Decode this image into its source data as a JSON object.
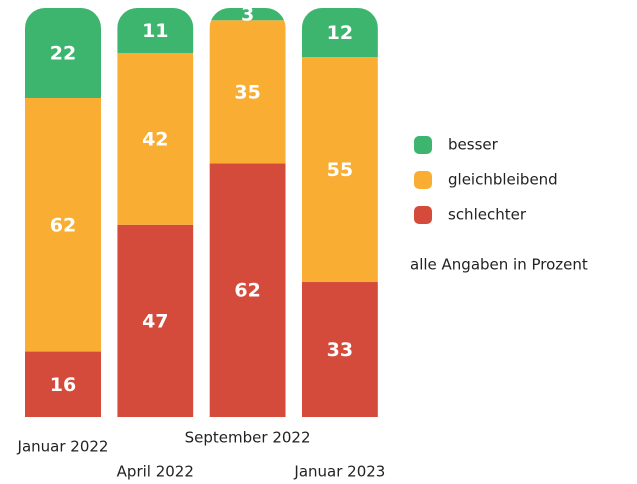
{
  "chart_data": {
    "type": "stacked_bar",
    "categories": [
      "Januar 2022",
      "April 2022",
      "September 2022",
      "Januar 2023"
    ],
    "series": [
      {
        "name": "schlechter",
        "color": "#d44b3b",
        "values": [
          16,
          47,
          62,
          33
        ]
      },
      {
        "name": "gleichbleibend",
        "color": "#f9ae33",
        "values": [
          62,
          42,
          35,
          55
        ]
      },
      {
        "name": "besser",
        "color": "#3db56e",
        "values": [
          22,
          11,
          3,
          12
        ]
      }
    ],
    "ylim": [
      0,
      100
    ],
    "note": "alle Angaben in Prozent"
  }
}
